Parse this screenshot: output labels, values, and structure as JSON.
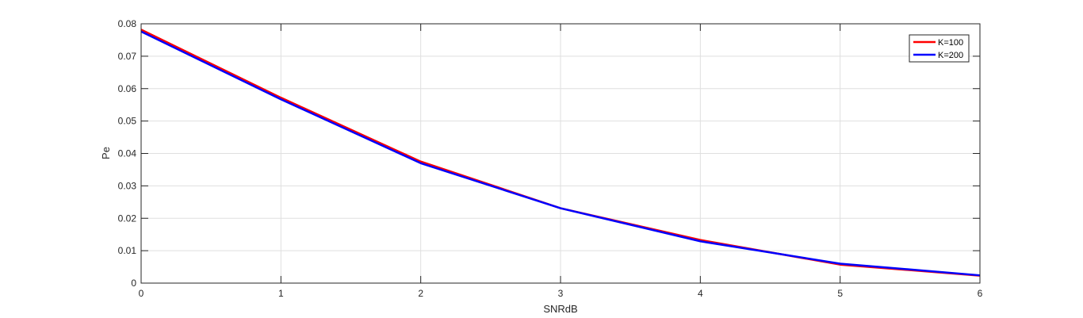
{
  "chart_data": {
    "type": "line",
    "title": "",
    "xlabel": "SNRdB",
    "ylabel": "Pe",
    "xlim": [
      0,
      6
    ],
    "ylim": [
      0,
      0.08
    ],
    "x_ticks": [
      "0",
      "1",
      "2",
      "3",
      "4",
      "5",
      "6"
    ],
    "y_ticks": [
      "0",
      "0.01",
      "0.02",
      "0.03",
      "0.04",
      "0.05",
      "0.06",
      "0.07",
      "0.08"
    ],
    "grid": true,
    "legend_position": "top-right",
    "x": [
      0,
      1,
      2,
      3,
      4,
      5,
      6
    ],
    "series": [
      {
        "name": "K=100",
        "color": "#ff0000",
        "values": [
          0.0782,
          0.0572,
          0.0375,
          0.0231,
          0.0133,
          0.0057,
          0.0023
        ]
      },
      {
        "name": "K=200",
        "color": "#0000ff",
        "values": [
          0.0776,
          0.0567,
          0.037,
          0.0231,
          0.0129,
          0.006,
          0.0024
        ]
      }
    ]
  }
}
